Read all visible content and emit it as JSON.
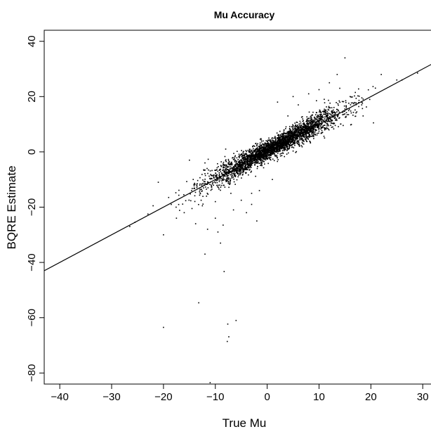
{
  "chart_data": {
    "type": "scatter",
    "title": "Mu Accuracy",
    "xlabel": "True Mu",
    "ylabel": "BQRE Estimate",
    "xlim": [
      -43,
      32
    ],
    "ylim": [
      -84,
      44
    ],
    "xticks": [
      -40,
      -30,
      -20,
      -10,
      0,
      10,
      20,
      30
    ],
    "yticks": [
      -80,
      -60,
      -40,
      -20,
      0,
      20,
      40
    ],
    "grid": false,
    "legend": "none",
    "reference_line": {
      "slope": 1,
      "intercept": 0
    },
    "series": [
      {
        "outliers": [
          [
            -20.0,
            -63.5
          ],
          [
            -13.2,
            -54.6
          ],
          [
            -7.7,
            -68.6
          ],
          [
            -7.4,
            -66.9
          ],
          [
            -7.6,
            -62.3
          ],
          [
            -6.0,
            -61.0
          ],
          [
            -8.3,
            -43.3
          ],
          [
            -11.0,
            -83.5
          ],
          [
            -12.0,
            -37.0
          ],
          [
            -9.0,
            -33.0
          ],
          [
            -9.5,
            -29.0
          ],
          [
            -11.5,
            -28.0
          ],
          [
            -13.8,
            -26.0
          ],
          [
            -2.0,
            -25.0
          ],
          [
            -17.5,
            -24.0
          ],
          [
            -20.0,
            -30.0
          ],
          [
            -16.0,
            -22.0
          ],
          [
            -14.5,
            -20.5
          ],
          [
            -4.0,
            -22.0
          ],
          [
            -6.5,
            -21.0
          ],
          [
            -3.0,
            -19.0
          ],
          [
            -10.0,
            -24.0
          ],
          [
            -8.5,
            -26.5
          ],
          [
            -12.5,
            -19.5
          ],
          [
            -18.5,
            -19.0
          ],
          [
            -22.0,
            -19.5
          ],
          [
            -23.0,
            -22.5
          ],
          [
            -25.5,
            -25.5
          ],
          [
            -26.5,
            -27.0
          ],
          [
            15.0,
            34.0
          ],
          [
            13.5,
            28.0
          ],
          [
            12.0,
            25.0
          ],
          [
            10.0,
            22.5
          ],
          [
            8.0,
            21.0
          ],
          [
            9.5,
            18.5
          ],
          [
            11.0,
            19.0
          ],
          [
            14.0,
            23.0
          ],
          [
            17.0,
            21.5
          ],
          [
            20.5,
            10.5
          ],
          [
            18.5,
            13.0
          ],
          [
            25.0,
            26.0
          ],
          [
            26.0,
            26.0
          ],
          [
            29.0,
            28.5
          ],
          [
            22.0,
            28.0
          ],
          [
            6.0,
            17.0
          ],
          [
            4.0,
            13.0
          ],
          [
            -15.0,
            -3.0
          ],
          [
            -12.0,
            -4.0
          ],
          [
            -8.0,
            1.0
          ],
          [
            -21.0,
            -11.0
          ],
          [
            -19.0,
            -16.5
          ],
          [
            -3.0,
            -15.0
          ],
          [
            1.0,
            -10.0
          ],
          [
            -1.5,
            -14.0
          ],
          [
            2.0,
            18.0
          ],
          [
            5.0,
            20.0
          ],
          [
            16.0,
            20.0
          ],
          [
            -10.0,
            -18.0
          ],
          [
            -5.0,
            -17.5
          ],
          [
            -7.0,
            -15.0
          ]
        ],
        "cluster_count": 3200,
        "cluster_x_range": [
          -18,
          22
        ],
        "cluster_scatter_sd": 1.6
      }
    ]
  }
}
